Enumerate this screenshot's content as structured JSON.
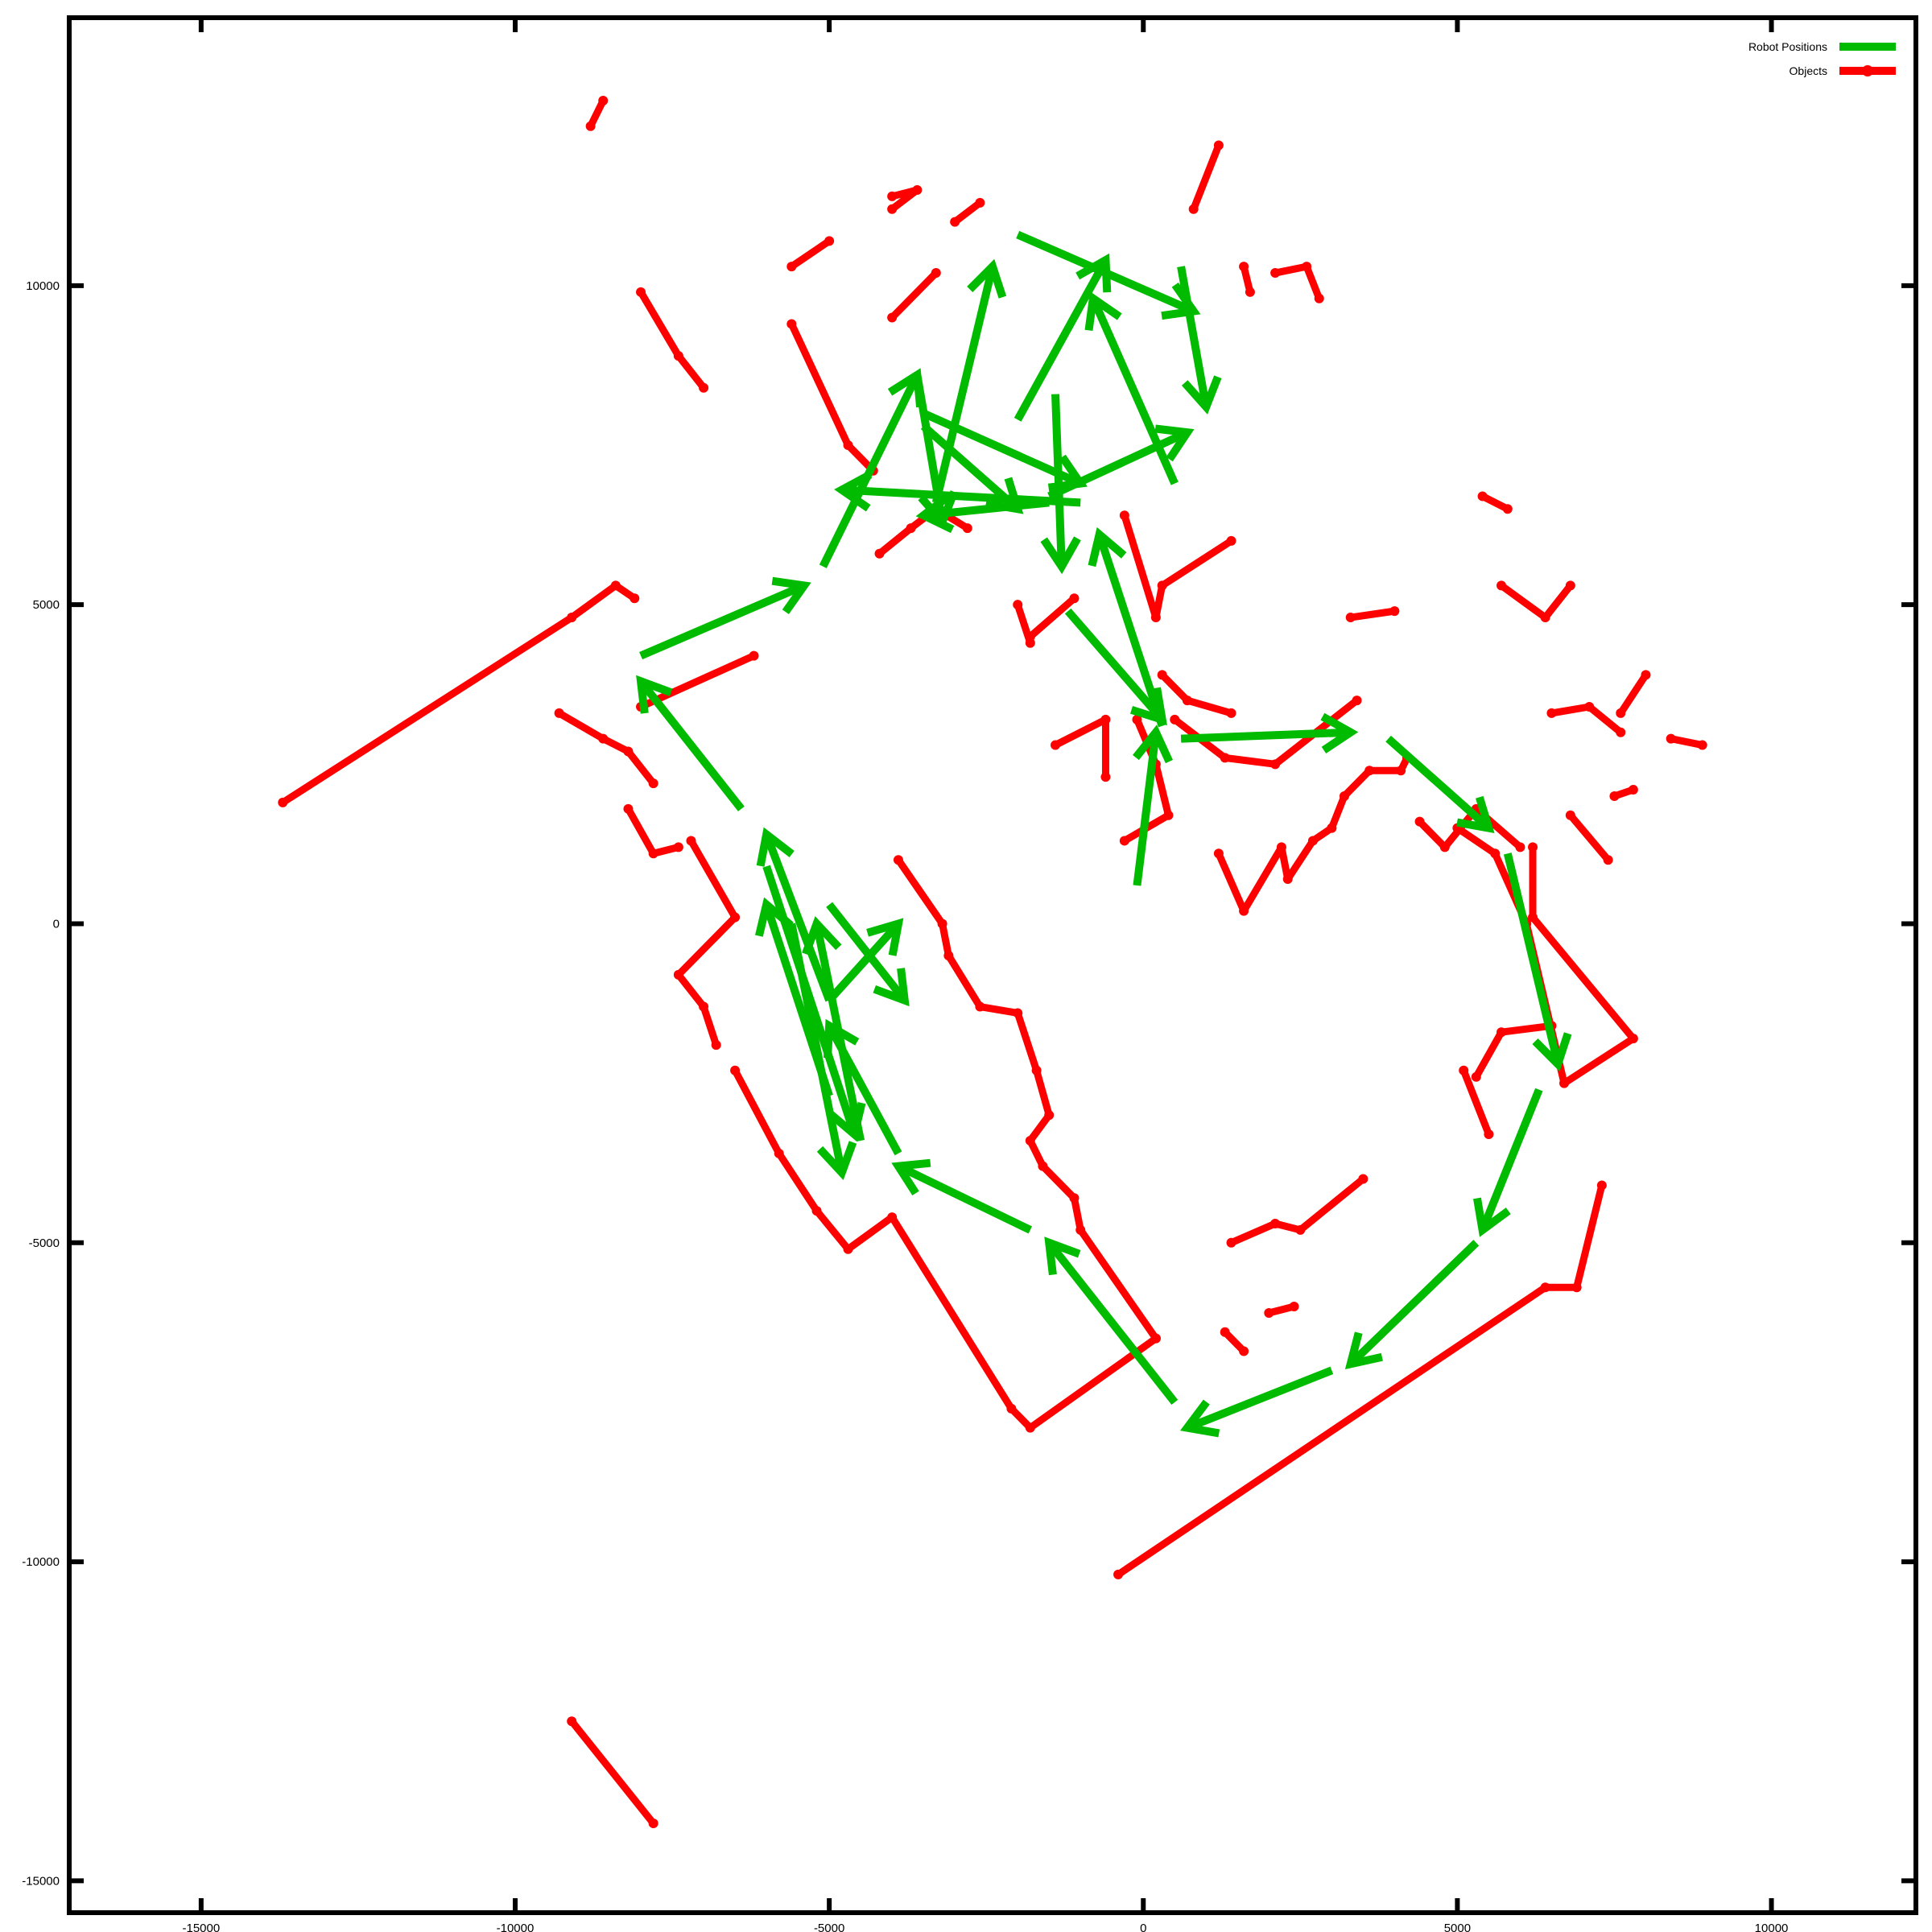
{
  "chart_data": {
    "type": "line",
    "title": "",
    "xlabel": "",
    "ylabel": "",
    "xlim": [
      -17100,
      12300
    ],
    "ylim": [
      -15500,
      14200
    ],
    "x_ticks": [
      -15000,
      -10000,
      -5000,
      0,
      5000,
      10000
    ],
    "y_ticks": [
      -15000,
      -10000,
      -5000,
      0,
      5000,
      10000
    ],
    "x_tick_labels": [
      "-15000",
      "-10000",
      "-5000",
      "0",
      "5000",
      "10000"
    ],
    "y_tick_labels": [
      "-15000",
      "-10000",
      "-5000",
      "0",
      "5000",
      "10000"
    ],
    "grid": false,
    "legend_position": "top-right",
    "series": [
      {
        "name": "Robot Positions",
        "color": "#00bb00",
        "style": "vectors",
        "vectors": [
          [
            5300,
            -5000,
            3300,
            -6900
          ],
          [
            3000,
            -7000,
            700,
            -7900
          ],
          [
            500,
            -7500,
            -1500,
            -5000
          ],
          [
            -1800,
            -4800,
            -3900,
            -3800
          ],
          [
            -3900,
            -3600,
            -5000,
            -1600
          ],
          [
            -5000,
            -1200,
            -6000,
            1400
          ],
          [
            -5000,
            -2700,
            -6000,
            300
          ],
          [
            -5000,
            300,
            -3800,
            -1200
          ],
          [
            -6000,
            900,
            -4600,
            -3300
          ],
          [
            -4500,
            -3400,
            -5200,
            0
          ],
          [
            -5600,
            0,
            -4800,
            -3900
          ],
          [
            -5000,
            -1200,
            -3900,
            0
          ],
          [
            -6400,
            1800,
            -8000,
            3800
          ],
          [
            -8000,
            4200,
            -5400,
            5300
          ],
          [
            -5100,
            5600,
            -3600,
            8600
          ],
          [
            -3600,
            8600,
            -3200,
            6300
          ],
          [
            -3500,
            8000,
            -1000,
            6900
          ],
          [
            -1000,
            6600,
            -4800,
            6800
          ],
          [
            -3300,
            6600,
            -2400,
            10300
          ],
          [
            -2000,
            10800,
            800,
            9600
          ],
          [
            -1400,
            8300,
            -1300,
            5600
          ],
          [
            -1200,
            4900,
            300,
            3200
          ],
          [
            -1500,
            6700,
            700,
            7700
          ],
          [
            500,
            6900,
            -800,
            9800
          ],
          [
            600,
            10300,
            1000,
            8100
          ],
          [
            300,
            3100,
            -700,
            6100
          ],
          [
            -100,
            600,
            200,
            3000
          ],
          [
            600,
            2900,
            3300,
            3000
          ],
          [
            3900,
            2900,
            5500,
            1500
          ],
          [
            5800,
            1100,
            6600,
            -2200
          ],
          [
            6300,
            -2600,
            5400,
            -4800
          ],
          [
            -2000,
            7900,
            -600,
            10400
          ],
          [
            -1500,
            6600,
            -3500,
            6400
          ],
          [
            -3500,
            7800,
            -2000,
            6500
          ]
        ]
      },
      {
        "name": "Objects",
        "color": "#ff0000",
        "style": "linespoints",
        "polylines": [
          [
            [
              -13700,
              1900
            ],
            [
              -9100,
              4800
            ],
            [
              -8400,
              5300
            ],
            [
              -8100,
              5100
            ]
          ],
          [
            [
              -9100,
              -12500
            ],
            [
              -7800,
              -14100
            ]
          ],
          [
            [
              -8000,
              9900
            ],
            [
              -7400,
              8900
            ],
            [
              -7000,
              8400
            ]
          ],
          [
            [
              -8800,
              12500
            ],
            [
              -8600,
              12900
            ]
          ],
          [
            [
              -5600,
              9400
            ],
            [
              -4700,
              7500
            ],
            [
              -4300,
              7100
            ]
          ],
          [
            [
              -5600,
              10300
            ],
            [
              -5000,
              10700
            ]
          ],
          [
            [
              -4000,
              11400
            ],
            [
              -3600,
              11500
            ],
            [
              -4000,
              11200
            ]
          ],
          [
            [
              -3000,
              11000
            ],
            [
              -2600,
              11300
            ]
          ],
          [
            [
              -4000,
              9500
            ],
            [
              -3300,
              10200
            ]
          ],
          [
            [
              -2000,
              5000
            ],
            [
              -1800,
              4400
            ]
          ],
          [
            [
              -1800,
              4500
            ],
            [
              -1100,
              5100
            ]
          ],
          [
            [
              -4200,
              5800
            ],
            [
              -3700,
              6200
            ],
            [
              -3300,
              6500
            ],
            [
              -2800,
              6200
            ]
          ],
          [
            [
              -8000,
              3400
            ],
            [
              -6200,
              4200
            ]
          ],
          [
            [
              -8200,
              1800
            ],
            [
              -7800,
              1100
            ],
            [
              -7400,
              1200
            ]
          ],
          [
            [
              -9300,
              3300
            ],
            [
              -8600,
              2900
            ],
            [
              -8200,
              2700
            ],
            [
              -7800,
              2200
            ]
          ],
          [
            [
              -7200,
              1300
            ],
            [
              -6500,
              100
            ],
            [
              -7400,
              -800
            ],
            [
              -7000,
              -1300
            ],
            [
              -6800,
              -1900
            ]
          ],
          [
            [
              -6500,
              -2300
            ],
            [
              -5800,
              -3600
            ],
            [
              -5200,
              -4500
            ],
            [
              -4700,
              -5100
            ],
            [
              -4000,
              -4600
            ],
            [
              -2100,
              -7600
            ],
            [
              -1800,
              -7900
            ],
            [
              200,
              -6500
            ]
          ],
          [
            [
              -3900,
              1000
            ],
            [
              -3200,
              0
            ],
            [
              -3100,
              -500
            ],
            [
              -2600,
              -1300
            ],
            [
              -2000,
              -1400
            ],
            [
              -1700,
              -2300
            ],
            [
              -1500,
              -3000
            ],
            [
              -1800,
              -3400
            ],
            [
              -1600,
              -3800
            ],
            [
              -1100,
              -4300
            ],
            [
              -1000,
              -4800
            ],
            [
              200,
              -6500
            ]
          ],
          [
            [
              -1400,
              2800
            ],
            [
              -600,
              3200
            ],
            [
              -600,
              2300
            ]
          ],
          [
            [
              -300,
              1300
            ],
            [
              400,
              1700
            ],
            [
              200,
              2500
            ],
            [
              -100,
              3200
            ]
          ],
          [
            [
              -300,
              6400
            ],
            [
              200,
              4800
            ],
            [
              300,
              5300
            ],
            [
              1400,
              6000
            ]
          ],
          [
            [
              300,
              3900
            ],
            [
              700,
              3500
            ],
            [
              1400,
              3300
            ]
          ],
          [
            [
              500,
              3200
            ],
            [
              1300,
              2600
            ],
            [
              2100,
              2500
            ],
            [
              3400,
              3500
            ]
          ],
          [
            [
              1200,
              1100
            ],
            [
              1600,
              200
            ],
            [
              2200,
              1200
            ],
            [
              2300,
              700
            ],
            [
              2700,
              1300
            ],
            [
              3000,
              1500
            ],
            [
              3200,
              2000
            ],
            [
              3600,
              2400
            ],
            [
              4100,
              2400
            ],
            [
              4200,
              2600
            ]
          ],
          [
            [
              4400,
              1600
            ],
            [
              4800,
              1200
            ],
            [
              5300,
              1800
            ],
            [
              6000,
              1200
            ]
          ],
          [
            [
              5000,
              1500
            ],
            [
              5600,
              1100
            ],
            [
              6100,
              0
            ],
            [
              6700,
              -2500
            ],
            [
              7800,
              -1800
            ],
            [
              6200,
              100
            ],
            [
              6200,
              1200
            ]
          ],
          [
            [
              5100,
              -2300
            ],
            [
              5500,
              -3300
            ]
          ],
          [
            [
              5300,
              -2400
            ],
            [
              5700,
              -1700
            ],
            [
              6500,
              -1600
            ]
          ],
          [
            [
              1400,
              -5000
            ],
            [
              2100,
              -4700
            ],
            [
              2500,
              -4800
            ],
            [
              3500,
              -4000
            ]
          ],
          [
            [
              1300,
              -6400
            ],
            [
              1600,
              -6700
            ]
          ],
          [
            [
              2000,
              -6100
            ],
            [
              2400,
              -6000
            ]
          ],
          [
            [
              -400,
              -10200
            ],
            [
              6400,
              -5700
            ],
            [
              6900,
              -5700
            ],
            [
              7300,
              -4100
            ]
          ],
          [
            [
              6800,
              1700
            ],
            [
              7400,
              1000
            ]
          ],
          [
            [
              7500,
              2000
            ],
            [
              7800,
              2100
            ]
          ],
          [
            [
              7600,
              3300
            ],
            [
              8000,
              3900
            ]
          ],
          [
            [
              5400,
              6700
            ],
            [
              5800,
              6500
            ]
          ],
          [
            [
              5700,
              5300
            ],
            [
              6400,
              4800
            ],
            [
              6800,
              5300
            ]
          ],
          [
            [
              3300,
              4800
            ],
            [
              4000,
              4900
            ]
          ],
          [
            [
              1600,
              10300
            ],
            [
              1700,
              9900
            ]
          ],
          [
            [
              2100,
              10200
            ],
            [
              2600,
              10300
            ],
            [
              2800,
              9800
            ]
          ],
          [
            [
              800,
              11200
            ],
            [
              1200,
              12200
            ]
          ],
          [
            [
              6500,
              3300
            ],
            [
              7100,
              3400
            ],
            [
              7600,
              3000
            ]
          ],
          [
            [
              8400,
              2900
            ],
            [
              8900,
              2800
            ]
          ]
        ]
      }
    ]
  }
}
